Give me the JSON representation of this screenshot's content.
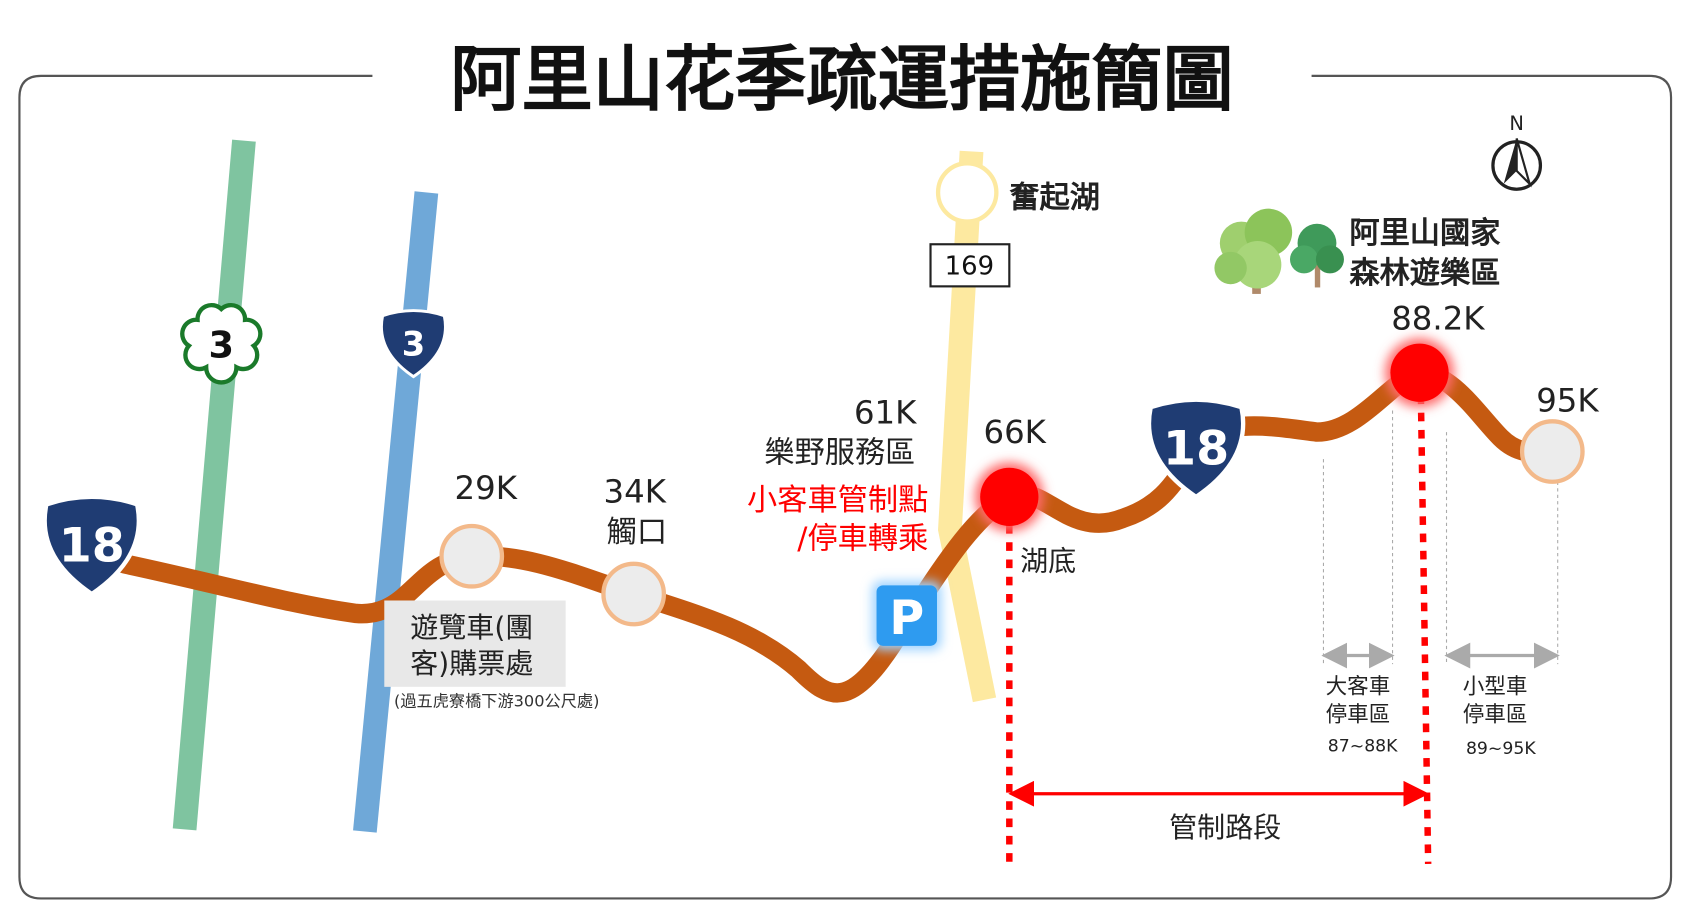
{
  "title": "阿里山花季疏運措施簡圖",
  "compass": {
    "label": "N"
  },
  "roads": {
    "provincial_18_shield": "18",
    "provincial_3_shield": "3",
    "county_3_shield": "3",
    "road_169": "169"
  },
  "places": {
    "fenqihu": "奮起湖",
    "park_line1": "阿里山國家",
    "park_line2": "森林遊樂區",
    "km29": "29K",
    "km34": "34K",
    "km34_name": "觸口",
    "km61": "61K",
    "km61_name": "樂野服務區",
    "control_line1": "小客車管制點",
    "control_line2": "/停車轉乘",
    "km66": "66K",
    "km66_name": "湖底",
    "km88": "88.2K",
    "km95": "95K",
    "ticket_line1": "遊覽車(團",
    "ticket_line2": "客)購票處",
    "ticket_note": "(過五虎寮橋下游300公尺處)",
    "parking_icon": "P"
  },
  "parking": {
    "bus_line1": "大客車",
    "bus_line2": "停車區",
    "bus_range": "87~88K",
    "car_line1": "小型車",
    "car_line2": "停車區",
    "car_range": "89~95K"
  },
  "control_section": "管制路段",
  "colors": {
    "route": "#c55a11",
    "control": "#ff0000",
    "highway3": "#7fc4a0",
    "county3": "#6fa8d8",
    "road169": "#fde9a0",
    "shield": "#1f3c73"
  }
}
